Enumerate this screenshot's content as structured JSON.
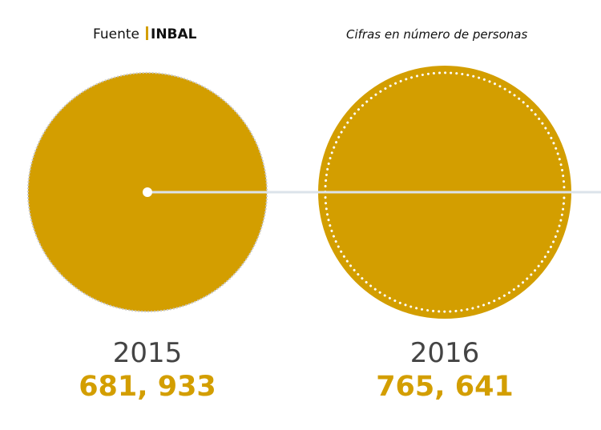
{
  "header": {
    "source_label": "Fuente",
    "source_value": "INBAL",
    "note": "Cifras en número de personas"
  },
  "colors": {
    "circle_fill": "#D39E00",
    "value_text": "#D39E00",
    "connector": "#DCE3EA",
    "dots": "#FFFFFF",
    "dotted_edge": "#C8C8C8"
  },
  "chart_data": {
    "type": "proportional-area",
    "title": "",
    "unit": "personas",
    "categories": [
      "2015",
      "2016"
    ],
    "values": [
      681933,
      765641
    ],
    "value_labels": [
      "681, 933",
      "765, 641"
    ]
  }
}
